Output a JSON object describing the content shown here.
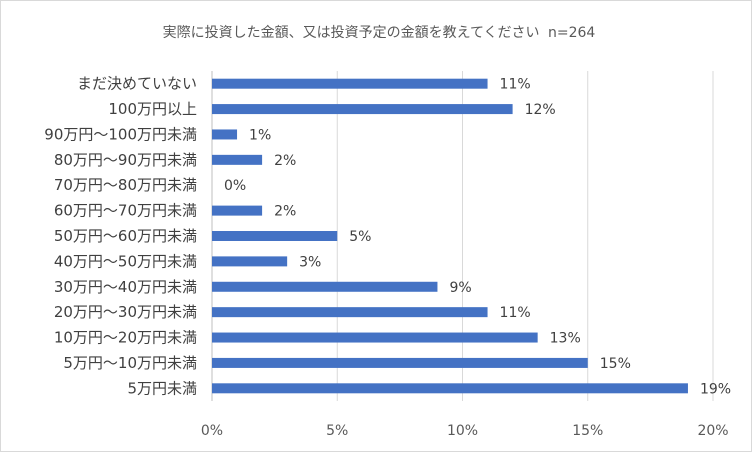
{
  "chart_data": {
    "type": "bar",
    "orientation": "horizontal",
    "title": "実際に投資した金額、又は投資予定の金額を教えてください",
    "sample_size": "n=264",
    "categories": [
      "まだ決めていない",
      "100万円以上",
      "90万円～100万円未満",
      "80万円～90万円未満",
      "70万円～80万円未満",
      "60万円～70万円未満",
      "50万円～60万円未満",
      "40万円～50万円未満",
      "30万円～40万円未満",
      "20万円～30万円未満",
      "10万円～20万円未満",
      "5万円～10万円未満",
      "5万円未満"
    ],
    "values": [
      11,
      12,
      1,
      2,
      0,
      2,
      5,
      3,
      9,
      11,
      13,
      15,
      19
    ],
    "value_labels": [
      "11%",
      "12%",
      "1%",
      "2%",
      "0%",
      "2%",
      "5%",
      "3%",
      "9%",
      "11%",
      "13%",
      "15%",
      "19%"
    ],
    "x_ticks": [
      "0%",
      "5%",
      "10%",
      "15%",
      "20%"
    ],
    "xlim": [
      0,
      20
    ],
    "xlabel": "",
    "ylabel": "",
    "grid": true,
    "bar_color": "#4472c4"
  }
}
